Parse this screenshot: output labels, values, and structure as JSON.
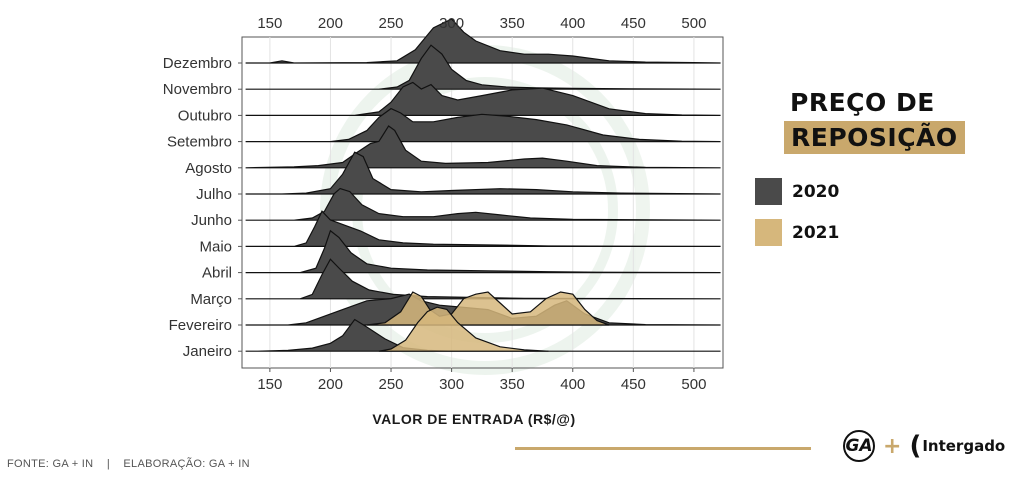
{
  "title": {
    "line1": "PREÇO DE",
    "line2": "REPOSIÇÃO"
  },
  "legend": [
    {
      "label": "2020",
      "color": "#4a4a4a"
    },
    {
      "label": "2021",
      "color": "#d6b77c"
    }
  ],
  "footer": {
    "source": "FONTE: GA + IN    |    ELABORAÇÃO: GA + IN"
  },
  "logos": {
    "ga": "GA",
    "plus": "+",
    "partner": "Intergado",
    "partner_mark": "("
  },
  "chart_data": {
    "type": "ridgeline",
    "xlabel": "VALOR DE ENTRADA (R$/@)",
    "ylabel": "",
    "xlim": [
      127,
      524
    ],
    "xticks": [
      150,
      200,
      250,
      300,
      350,
      400,
      450,
      500
    ],
    "grid": true,
    "categories": [
      "Dezembro",
      "Novembro",
      "Outubro",
      "Setembro",
      "Agosto",
      "Julho",
      "Junho",
      "Maio",
      "Abril",
      "Março",
      "Fevereiro",
      "Janeiro"
    ],
    "series": [
      {
        "name": "2020",
        "color": "#4a4a4a",
        "densities": {
          "Dezembro": [
            [
              130,
              0
            ],
            [
              150,
              0
            ],
            [
              160,
              0.05
            ],
            [
              170,
              0
            ],
            [
              230,
              0.01
            ],
            [
              255,
              0.05
            ],
            [
              270,
              0.3
            ],
            [
              285,
              0.8
            ],
            [
              300,
              1.0
            ],
            [
              310,
              0.7
            ],
            [
              320,
              0.5
            ],
            [
              340,
              0.28
            ],
            [
              360,
              0.2
            ],
            [
              380,
              0.2
            ],
            [
              400,
              0.16
            ],
            [
              430,
              0.05
            ],
            [
              460,
              0.02
            ],
            [
              500,
              0.01
            ],
            [
              522,
              0
            ]
          ],
          "Novembro": [
            [
              130,
              0
            ],
            [
              240,
              0
            ],
            [
              255,
              0.05
            ],
            [
              265,
              0.2
            ],
            [
              275,
              0.7
            ],
            [
              283,
              1.0
            ],
            [
              292,
              0.8
            ],
            [
              300,
              0.45
            ],
            [
              312,
              0.2
            ],
            [
              325,
              0.1
            ],
            [
              345,
              0.05
            ],
            [
              370,
              0.03
            ],
            [
              400,
              0.02
            ],
            [
              450,
              0.01
            ],
            [
              522,
              0
            ]
          ],
          "Outubro": [
            [
              130,
              0
            ],
            [
              220,
              0
            ],
            [
              240,
              0.08
            ],
            [
              250,
              0.3
            ],
            [
              260,
              0.65
            ],
            [
              268,
              0.75
            ],
            [
              275,
              0.6
            ],
            [
              283,
              0.7
            ],
            [
              292,
              0.45
            ],
            [
              305,
              0.35
            ],
            [
              325,
              0.45
            ],
            [
              350,
              0.58
            ],
            [
              375,
              0.62
            ],
            [
              400,
              0.45
            ],
            [
              430,
              0.15
            ],
            [
              460,
              0.04
            ],
            [
              490,
              0.01
            ],
            [
              522,
              0
            ]
          ],
          "Setembro": [
            [
              130,
              0
            ],
            [
              200,
              0
            ],
            [
              215,
              0.05
            ],
            [
              230,
              0.25
            ],
            [
              240,
              0.55
            ],
            [
              250,
              0.75
            ],
            [
              258,
              0.65
            ],
            [
              268,
              0.45
            ],
            [
              285,
              0.45
            ],
            [
              305,
              0.55
            ],
            [
              325,
              0.62
            ],
            [
              345,
              0.58
            ],
            [
              370,
              0.5
            ],
            [
              395,
              0.38
            ],
            [
              425,
              0.15
            ],
            [
              455,
              0.05
            ],
            [
              490,
              0.01
            ],
            [
              522,
              0
            ]
          ],
          "Agosto": [
            [
              130,
              0
            ],
            [
              170,
              0.02
            ],
            [
              190,
              0.05
            ],
            [
              210,
              0.12
            ],
            [
              222,
              0.35
            ],
            [
              233,
              0.55
            ],
            [
              240,
              0.6
            ],
            [
              248,
              0.95
            ],
            [
              253,
              0.85
            ],
            [
              262,
              0.4
            ],
            [
              275,
              0.15
            ],
            [
              295,
              0.1
            ],
            [
              330,
              0.12
            ],
            [
              360,
              0.2
            ],
            [
              375,
              0.22
            ],
            [
              395,
              0.15
            ],
            [
              420,
              0.05
            ],
            [
              460,
              0.01
            ],
            [
              522,
              0
            ]
          ],
          "Julho": [
            [
              130,
              0
            ],
            [
              160,
              0
            ],
            [
              180,
              0.02
            ],
            [
              200,
              0.12
            ],
            [
              210,
              0.45
            ],
            [
              220,
              0.95
            ],
            [
              227,
              0.85
            ],
            [
              235,
              0.35
            ],
            [
              250,
              0.1
            ],
            [
              275,
              0.05
            ],
            [
              300,
              0.08
            ],
            [
              340,
              0.12
            ],
            [
              370,
              0.1
            ],
            [
              400,
              0.05
            ],
            [
              440,
              0.02
            ],
            [
              522,
              0
            ]
          ],
          "Junho": [
            [
              130,
              0
            ],
            [
              170,
              0
            ],
            [
              185,
              0.05
            ],
            [
              195,
              0.2
            ],
            [
              203,
              0.6
            ],
            [
              208,
              0.72
            ],
            [
              216,
              0.65
            ],
            [
              226,
              0.35
            ],
            [
              240,
              0.15
            ],
            [
              260,
              0.08
            ],
            [
              285,
              0.08
            ],
            [
              305,
              0.15
            ],
            [
              320,
              0.18
            ],
            [
              340,
              0.12
            ],
            [
              365,
              0.05
            ],
            [
              400,
              0.02
            ],
            [
              522,
              0
            ]
          ],
          "Maio": [
            [
              130,
              0
            ],
            [
              170,
              0
            ],
            [
              180,
              0.08
            ],
            [
              187,
              0.45
            ],
            [
              193,
              0.8
            ],
            [
              200,
              0.6
            ],
            [
              210,
              0.5
            ],
            [
              225,
              0.35
            ],
            [
              240,
              0.15
            ],
            [
              260,
              0.08
            ],
            [
              285,
              0.05
            ],
            [
              310,
              0.04
            ],
            [
              340,
              0.03
            ],
            [
              380,
              0.01
            ],
            [
              522,
              0
            ]
          ],
          "Abril": [
            [
              130,
              0
            ],
            [
              175,
              0
            ],
            [
              188,
              0.1
            ],
            [
              195,
              0.55
            ],
            [
              200,
              0.95
            ],
            [
              207,
              0.8
            ],
            [
              217,
              0.45
            ],
            [
              230,
              0.2
            ],
            [
              250,
              0.1
            ],
            [
              280,
              0.06
            ],
            [
              330,
              0.04
            ],
            [
              380,
              0.02
            ],
            [
              420,
              0.01
            ],
            [
              522,
              0
            ]
          ],
          "Março": [
            [
              130,
              0
            ],
            [
              175,
              0
            ],
            [
              185,
              0.1
            ],
            [
              193,
              0.55
            ],
            [
              200,
              0.9
            ],
            [
              207,
              0.7
            ],
            [
              218,
              0.4
            ],
            [
              232,
              0.2
            ],
            [
              252,
              0.1
            ],
            [
              280,
              0.05
            ],
            [
              320,
              0.03
            ],
            [
              360,
              0.01
            ],
            [
              522,
              0
            ]
          ],
          "Fevereiro": [
            [
              130,
              0
            ],
            [
              165,
              0
            ],
            [
              180,
              0.05
            ],
            [
              195,
              0.2
            ],
            [
              210,
              0.35
            ],
            [
              230,
              0.55
            ],
            [
              250,
              0.6
            ],
            [
              265,
              0.7
            ],
            [
              275,
              0.55
            ],
            [
              290,
              0.45
            ],
            [
              310,
              0.4
            ],
            [
              330,
              0.35
            ],
            [
              350,
              0.15
            ],
            [
              370,
              0.2
            ],
            [
              385,
              0.45
            ],
            [
              395,
              0.55
            ],
            [
              410,
              0.25
            ],
            [
              430,
              0.05
            ],
            [
              460,
              0.01
            ],
            [
              522,
              0
            ]
          ],
          "Janeiro": [
            [
              130,
              0
            ],
            [
              140,
              0
            ],
            [
              165,
              0.02
            ],
            [
              185,
              0.07
            ],
            [
              200,
              0.18
            ],
            [
              210,
              0.35
            ],
            [
              220,
              0.72
            ],
            [
              230,
              0.55
            ],
            [
              245,
              0.28
            ],
            [
              260,
              0.08
            ],
            [
              280,
              0.02
            ],
            [
              300,
              0
            ],
            [
              522,
              0
            ]
          ]
        }
      },
      {
        "name": "2021",
        "color": "#d6b77c",
        "densities": {
          "Fevereiro": [
            [
              230,
              0
            ],
            [
              245,
              0.05
            ],
            [
              258,
              0.3
            ],
            [
              268,
              0.75
            ],
            [
              275,
              0.65
            ],
            [
              282,
              0.35
            ],
            [
              290,
              0.2
            ],
            [
              300,
              0.25
            ],
            [
              310,
              0.6
            ],
            [
              320,
              0.7
            ],
            [
              330,
              0.75
            ],
            [
              340,
              0.5
            ],
            [
              350,
              0.25
            ],
            [
              365,
              0.3
            ],
            [
              378,
              0.6
            ],
            [
              390,
              0.75
            ],
            [
              400,
              0.7
            ],
            [
              410,
              0.35
            ],
            [
              420,
              0.1
            ],
            [
              430,
              0
            ]
          ],
          "Janeiro": [
            [
              240,
              0
            ],
            [
              250,
              0.05
            ],
            [
              262,
              0.25
            ],
            [
              272,
              0.65
            ],
            [
              280,
              0.9
            ],
            [
              288,
              1.0
            ],
            [
              296,
              0.95
            ],
            [
              305,
              0.65
            ],
            [
              320,
              0.3
            ],
            [
              340,
              0.1
            ],
            [
              360,
              0.03
            ],
            [
              380,
              0
            ]
          ]
        }
      }
    ]
  }
}
